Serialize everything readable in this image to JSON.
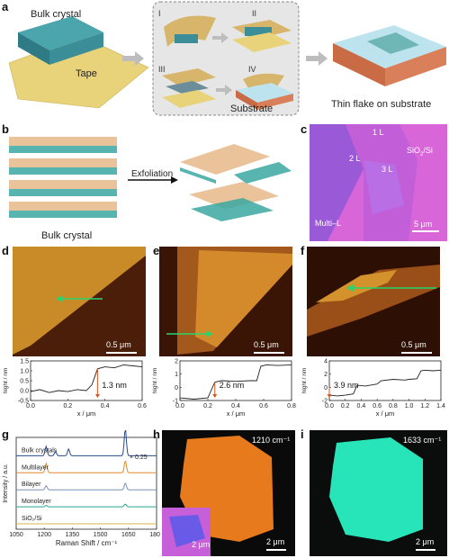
{
  "panel_a": {
    "label": "a",
    "bulk_crystal": "Bulk crystal",
    "tape": "Tape",
    "steps": [
      "I",
      "II",
      "III",
      "IV"
    ],
    "substrate": "Substrate",
    "result": "Thin flake on substrate"
  },
  "panel_b": {
    "label": "b",
    "bulk_crystal": "Bulk crystal",
    "exfoliation": "Exfoliation"
  },
  "panel_c": {
    "label": "c",
    "layers": [
      "1 L",
      "2 L",
      "3 L"
    ],
    "multi": "Multi–L",
    "substrate_main": "SiO",
    "substrate_sub": "2",
    "substrate_end": "/Si",
    "scale": "5 μm"
  },
  "panels_def": {
    "d": {
      "label": "d",
      "scale": "0.5 μm",
      "height": "1.3 nm"
    },
    "e": {
      "label": "e",
      "scale": "0.5 μm",
      "height": "2.6 nm"
    },
    "f": {
      "label": "f",
      "scale": "0.5 μm",
      "height": "3.9 nm"
    },
    "ylabel": "hight / nm",
    "xlabel": "x / μm"
  },
  "panel_g": {
    "label": "g",
    "labels": [
      "Bulk crystals",
      "Multilayer",
      "Bilayer",
      "Monolayer",
      "SiO₂/Si"
    ],
    "scale_note": "× 0.25",
    "ylabel": "Intensity / a.u.",
    "xlabel": "Raman Shift / cm⁻¹",
    "xticks": [
      "1050",
      "1200",
      "1350",
      "1500",
      "1650",
      "1800"
    ]
  },
  "panel_h": {
    "label": "h",
    "wavenumber": "1210 cm⁻¹",
    "scale": "2 μm",
    "inset_scale": "2 μm"
  },
  "panel_i": {
    "label": "i",
    "wavenumber": "1633 cm⁻¹",
    "scale": "2 μm"
  },
  "chart_data": [
    {
      "type": "line",
      "panel": "d",
      "xlabel": "x / μm",
      "ylabel": "hight / nm",
      "xlim": [
        0,
        0.6
      ],
      "ylim": [
        -0.5,
        1.5
      ],
      "xticks": [
        0.0,
        0.2,
        0.4,
        0.6
      ],
      "yticks": [
        -0.5,
        0.0,
        0.5,
        1.0,
        1.5
      ],
      "x": [
        0.0,
        0.05,
        0.1,
        0.15,
        0.2,
        0.25,
        0.3,
        0.33,
        0.36,
        0.4,
        0.45,
        0.5,
        0.55,
        0.6
      ],
      "y": [
        -0.05,
        0.05,
        -0.1,
        0.0,
        -0.05,
        0.05,
        0.0,
        0.3,
        1.1,
        1.2,
        1.15,
        1.3,
        1.25,
        1.2
      ]
    },
    {
      "type": "line",
      "panel": "e",
      "xlabel": "x / μm",
      "ylabel": "hight / nm",
      "xlim": [
        0,
        0.8
      ],
      "ylim": [
        -1,
        2
      ],
      "xticks": [
        0.0,
        0.2,
        0.4,
        0.6,
        0.8
      ],
      "yticks": [
        -1,
        0,
        1,
        2
      ],
      "x": [
        0.0,
        0.1,
        0.2,
        0.25,
        0.3,
        0.4,
        0.5,
        0.55,
        0.58,
        0.62,
        0.7,
        0.8
      ],
      "y": [
        -0.8,
        -0.9,
        -0.8,
        0.4,
        0.5,
        0.45,
        0.5,
        0.5,
        1.6,
        1.7,
        1.65,
        1.7
      ]
    },
    {
      "type": "line",
      "panel": "f",
      "xlabel": "x / μm",
      "ylabel": "hight / nm",
      "xlim": [
        0,
        1.4
      ],
      "ylim": [
        -2,
        4
      ],
      "xticks": [
        0.0,
        0.2,
        0.4,
        0.6,
        0.8,
        1.0,
        1.2,
        1.4
      ],
      "yticks": [
        -2,
        0,
        2,
        4
      ],
      "x": [
        0.0,
        0.1,
        0.2,
        0.3,
        0.35,
        0.45,
        0.6,
        0.65,
        0.8,
        0.95,
        1.0,
        1.1,
        1.15,
        1.2,
        1.3,
        1.4
      ],
      "y": [
        -1.2,
        -1.3,
        -1.2,
        -1.0,
        0.3,
        0.2,
        0.5,
        1.0,
        1.2,
        1.1,
        1.2,
        1.3,
        2.5,
        2.6,
        2.5,
        2.6
      ]
    },
    {
      "type": "line",
      "panel": "g",
      "xlabel": "Raman Shift / cm⁻¹",
      "ylabel": "Intensity / a.u.",
      "xlim": [
        1050,
        1800
      ],
      "xticks": [
        1050,
        1200,
        1350,
        1500,
        1650,
        1800
      ],
      "series": [
        {
          "name": "Bulk crystals",
          "color": "#2b4a8a",
          "offset": 4,
          "peaks": [
            [
              1210,
              0.35
            ],
            [
              1260,
              0.15
            ],
            [
              1330,
              0.25
            ],
            [
              1633,
              1.0
            ]
          ]
        },
        {
          "name": "Multilayer",
          "color": "#e08a2c",
          "offset": 3,
          "peaks": [
            [
              1210,
              0.35
            ],
            [
              1633,
              0.45
            ]
          ]
        },
        {
          "name": "Bilayer",
          "color": "#7a8fb8",
          "offset": 2,
          "peaks": [
            [
              1210,
              0.15
            ],
            [
              1633,
              0.25
            ]
          ]
        },
        {
          "name": "Monolayer",
          "color": "#2aa58a",
          "offset": 1,
          "peaks": [
            [
              1210,
              0.05
            ],
            [
              1633,
              0.1
            ]
          ]
        },
        {
          "name": "SiO₂/Si",
          "color": "#d9b54a",
          "offset": 0,
          "peaks": []
        }
      ]
    }
  ]
}
